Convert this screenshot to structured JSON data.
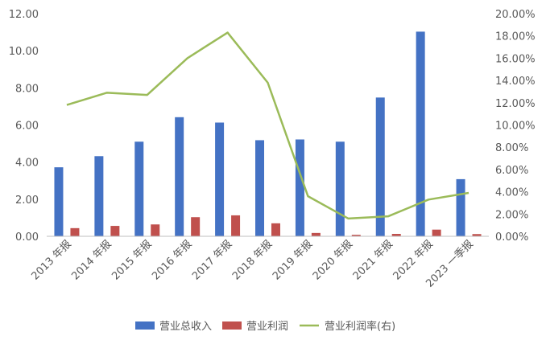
{
  "chart_data": {
    "type": "bar",
    "categories": [
      "2013 年报",
      "2014 年报",
      "2015 年报",
      "2016 年报",
      "2017 年报",
      "2018 年报",
      "2019 年报",
      "2020 年报",
      "2021 年报",
      "2022 年报",
      "2023 一季报"
    ],
    "series": [
      {
        "name": "营业总收入",
        "type": "bar",
        "axis": "left",
        "color": "#4472C4",
        "values": [
          3.72,
          4.32,
          5.1,
          6.42,
          6.13,
          5.18,
          5.22,
          5.1,
          7.48,
          11.03,
          3.08
        ]
      },
      {
        "name": "营业利润",
        "type": "bar",
        "axis": "left",
        "color": "#C0504D",
        "values": [
          0.44,
          0.56,
          0.64,
          1.03,
          1.13,
          0.7,
          0.18,
          0.08,
          0.13,
          0.36,
          0.12
        ]
      },
      {
        "name": "营业利润率(右)",
        "type": "line",
        "axis": "right",
        "color": "#9BBB59",
        "values": [
          11.8,
          12.9,
          12.7,
          16.0,
          18.3,
          13.8,
          3.6,
          1.6,
          1.8,
          3.3,
          3.9
        ]
      }
    ],
    "y_left": {
      "range": [
        0,
        12
      ],
      "ticks": [
        "0.00",
        "2.00",
        "4.00",
        "6.00",
        "8.00",
        "10.00",
        "12.00"
      ]
    },
    "y_right": {
      "range": [
        0,
        20
      ],
      "ticks": [
        "0.00%",
        "2.00%",
        "4.00%",
        "6.00%",
        "8.00%",
        "10.00%",
        "12.00%",
        "14.00%",
        "16.00%",
        "18.00%",
        "20.00%"
      ]
    },
    "grid": false,
    "legend": "bottom"
  }
}
